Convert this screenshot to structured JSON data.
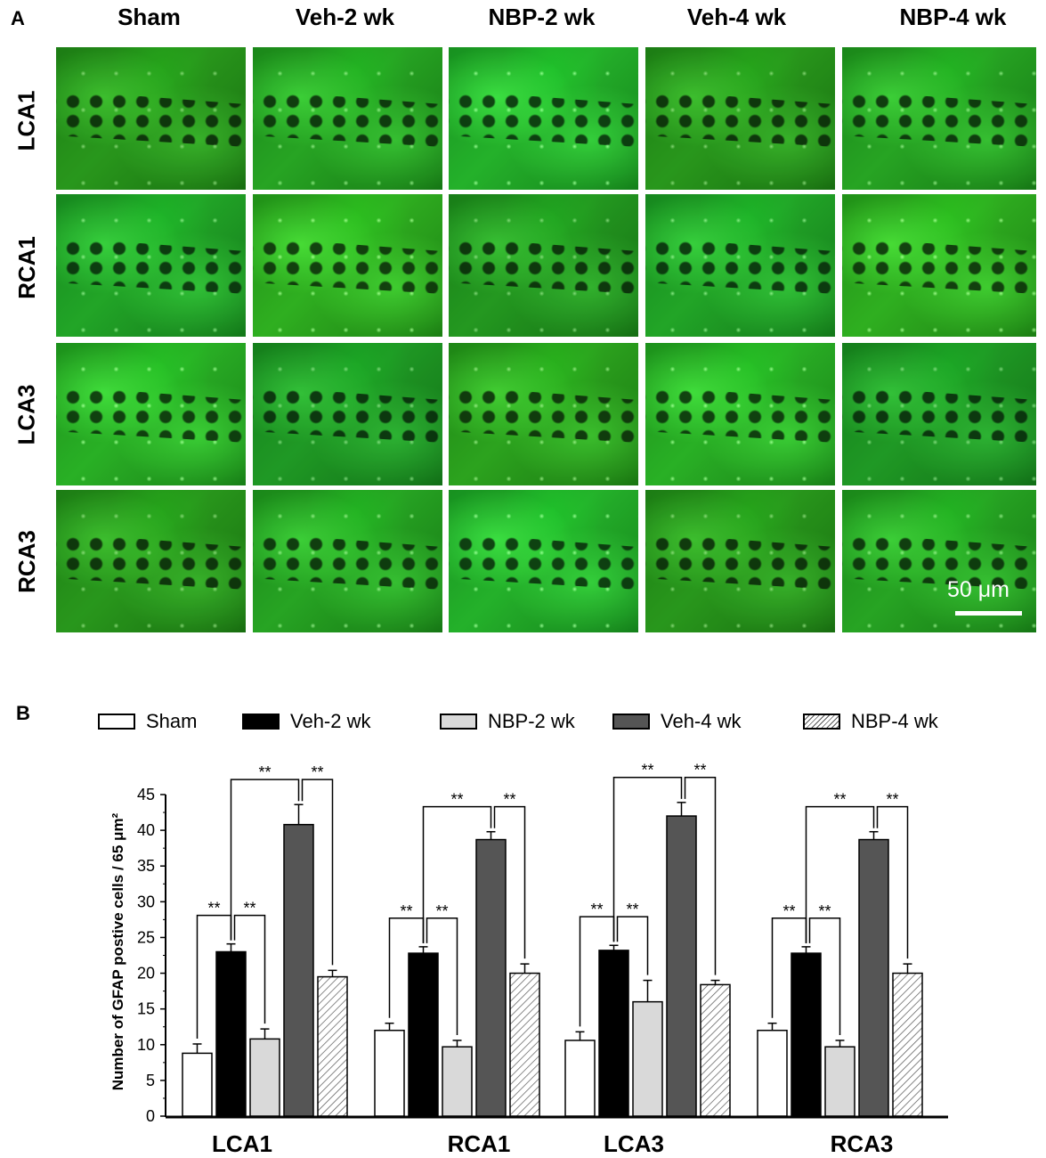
{
  "panel_a": {
    "letter": "A",
    "columns": [
      "Sham",
      "Veh-2 wk",
      "NBP-2 wk",
      "Veh-4 wk",
      "NBP-4 wk"
    ],
    "rows": [
      "LCA1",
      "RCA1",
      "LCA3",
      "RCA3"
    ],
    "scale_bar_label": "50 μm"
  },
  "panel_b": {
    "letter": "B",
    "legend": [
      {
        "label": "Sham",
        "fill": "#ffffff"
      },
      {
        "label": "Veh-2 wk",
        "fill": "#000000"
      },
      {
        "label": "NBP-2 wk",
        "fill": "#d9d9d9"
      },
      {
        "label": "Veh-4 wk",
        "fill": "#555555"
      },
      {
        "label": "NBP-4 wk",
        "fill": "hatch"
      }
    ]
  },
  "chart_data": {
    "type": "bar",
    "categories": [
      "LCA1",
      "RCA1",
      "LCA3",
      "RCA3"
    ],
    "ylabel": "Number of GFAP postive cells / 65 μm²",
    "ylim": [
      0,
      45
    ],
    "yticks": [
      0,
      5,
      10,
      15,
      20,
      25,
      30,
      35,
      40,
      45
    ],
    "significance_label": "**",
    "series": [
      {
        "name": "Sham",
        "values": [
          8.8,
          12.0,
          10.6,
          12.0
        ],
        "errors": [
          1.3,
          1.0,
          1.2,
          1.0
        ]
      },
      {
        "name": "Veh-2 wk",
        "values": [
          23.0,
          22.8,
          23.2,
          22.8
        ],
        "errors": [
          1.1,
          0.9,
          0.7,
          0.9
        ]
      },
      {
        "name": "NBP-2 wk",
        "values": [
          10.8,
          9.7,
          16.0,
          9.7
        ],
        "errors": [
          1.4,
          0.9,
          3.0,
          0.9
        ]
      },
      {
        "name": "Veh-4 wk",
        "values": [
          40.8,
          38.7,
          42.0,
          38.7
        ],
        "errors": [
          2.8,
          1.1,
          1.9,
          1.1
        ]
      },
      {
        "name": "NBP-4 wk",
        "values": [
          19.5,
          20.0,
          18.4,
          20.0
        ],
        "errors": [
          0.9,
          1.3,
          0.6,
          1.3
        ]
      }
    ]
  }
}
